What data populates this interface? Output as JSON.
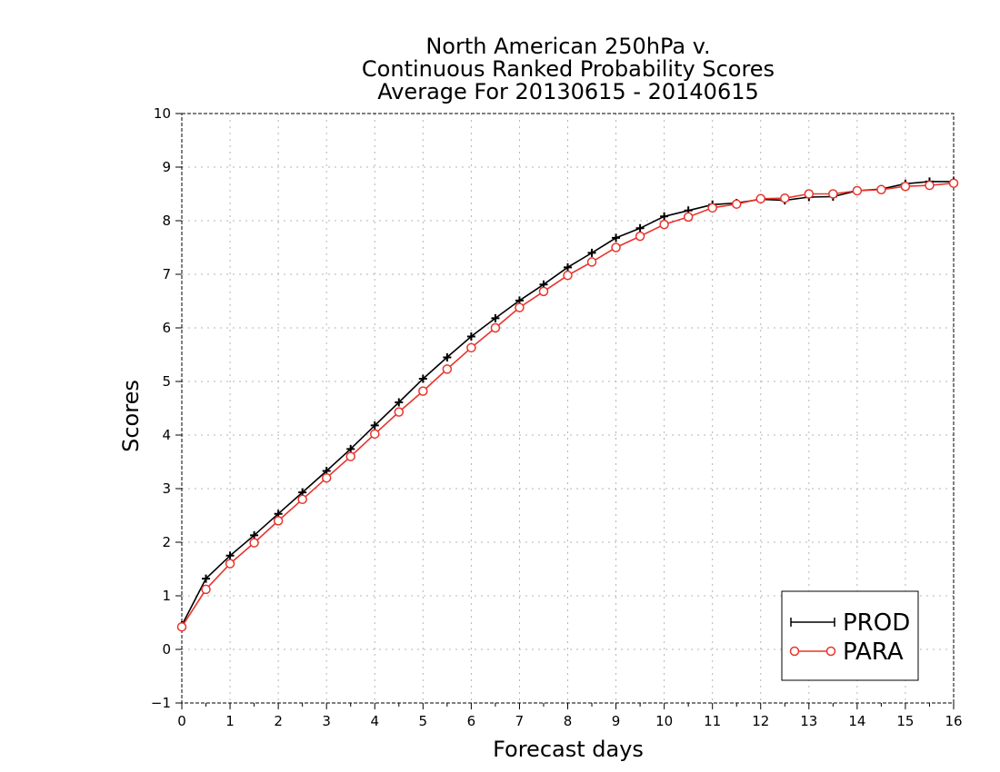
{
  "chart_data": {
    "type": "line",
    "title": [
      "North American 250hPa v.",
      "Continuous Ranked Probability Scores",
      "Average For 20130615 - 20140615"
    ],
    "xlabel": "Forecast days",
    "ylabel": "Scores",
    "xlim": [
      0,
      16
    ],
    "ylim": [
      -1,
      10
    ],
    "x_ticks": [
      0,
      1,
      2,
      3,
      4,
      5,
      6,
      7,
      8,
      9,
      10,
      11,
      12,
      13,
      14,
      15,
      16
    ],
    "y_ticks": [
      -1,
      0,
      1,
      2,
      3,
      4,
      5,
      6,
      7,
      8,
      9,
      10
    ],
    "grid": true,
    "legend_position": "bottom-right",
    "x": [
      0,
      0.5,
      1,
      1.5,
      2,
      2.5,
      3,
      3.5,
      4,
      4.5,
      5,
      5.5,
      6,
      6.5,
      7,
      7.5,
      8,
      8.5,
      9,
      9.5,
      10,
      10.5,
      11,
      11.5,
      12,
      12.5,
      13,
      13.5,
      14,
      14.5,
      15,
      15.5,
      16
    ],
    "series": [
      {
        "name": "PROD",
        "color": "#000000",
        "marker": "plus",
        "values": [
          0.45,
          1.32,
          1.75,
          2.13,
          2.53,
          2.93,
          3.33,
          3.74,
          4.18,
          4.61,
          5.05,
          5.45,
          5.84,
          6.18,
          6.51,
          6.81,
          7.13,
          7.4,
          7.68,
          7.86,
          8.08,
          8.19,
          8.3,
          8.33,
          8.4,
          8.38,
          8.44,
          8.45,
          8.56,
          8.59,
          8.69,
          8.73,
          8.73
        ]
      },
      {
        "name": "PARA",
        "color": "#e8342c",
        "marker": "circle",
        "values": [
          0.42,
          1.12,
          1.6,
          1.99,
          2.4,
          2.8,
          3.2,
          3.6,
          4.02,
          4.43,
          4.82,
          5.23,
          5.63,
          6.0,
          6.38,
          6.68,
          6.98,
          7.23,
          7.5,
          7.71,
          7.93,
          8.07,
          8.24,
          8.31,
          8.41,
          8.42,
          8.5,
          8.5,
          8.56,
          8.58,
          8.64,
          8.66,
          8.7
        ]
      }
    ]
  }
}
